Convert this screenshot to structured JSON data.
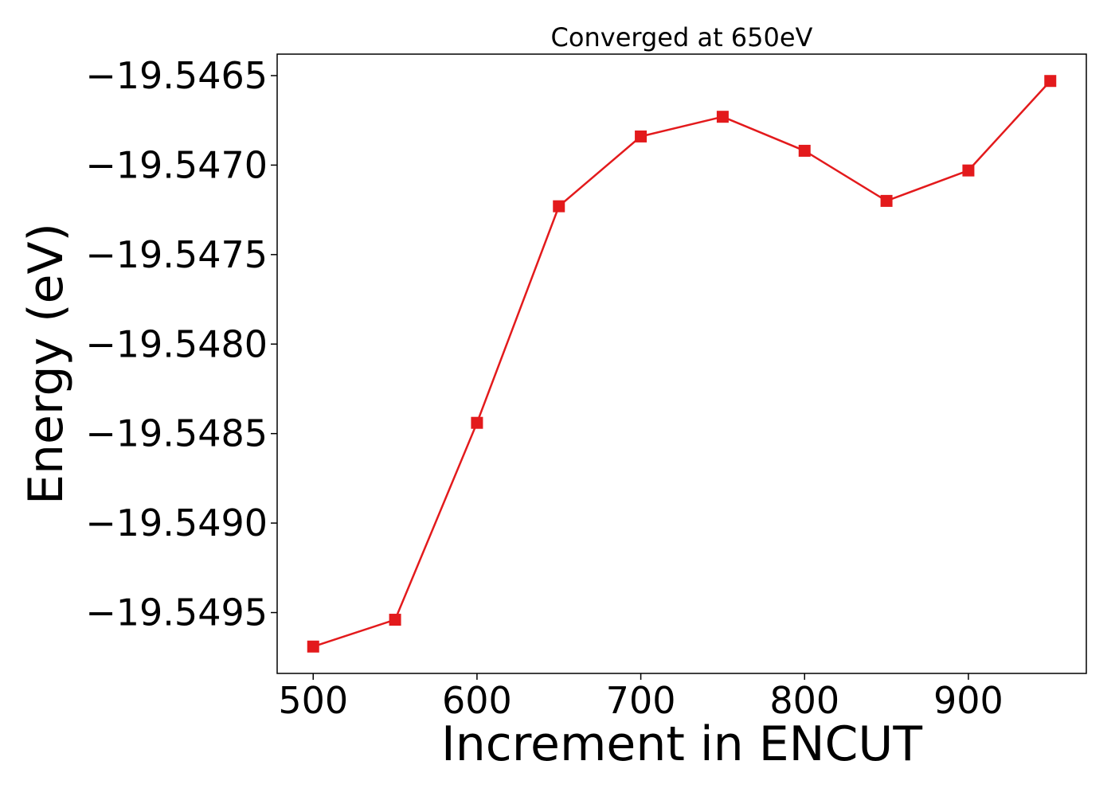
{
  "chart_data": {
    "type": "line",
    "title": "Converged at 650eV",
    "xlabel": "Increment in ENCUT",
    "ylabel": "Energy (eV)",
    "x": [
      500,
      550,
      600,
      650,
      700,
      750,
      800,
      850,
      900,
      950
    ],
    "series": [
      {
        "values": [
          -19.54969,
          -19.54954,
          -19.54844,
          -19.54723,
          -19.54684,
          -19.54673,
          -19.54692,
          -19.5472,
          -19.54703,
          -19.54653
        ],
        "color": "#e31a1c",
        "marker": "square"
      }
    ],
    "xlim": [
      478,
      972
    ],
    "ylim": [
      -19.54984,
      -19.54638
    ],
    "xticks": [
      500,
      600,
      700,
      800,
      900
    ],
    "xtick_labels": [
      "500",
      "600",
      "700",
      "800",
      "900"
    ],
    "yticks": [
      -19.5495,
      -19.549,
      -19.5485,
      -19.548,
      -19.5475,
      -19.547,
      -19.5465
    ],
    "ytick_labels": [
      "−19.5495",
      "−19.5490",
      "−19.5485",
      "−19.5480",
      "−19.5475",
      "−19.5470",
      "−19.5465"
    ],
    "grid": false,
    "legend": "none"
  }
}
